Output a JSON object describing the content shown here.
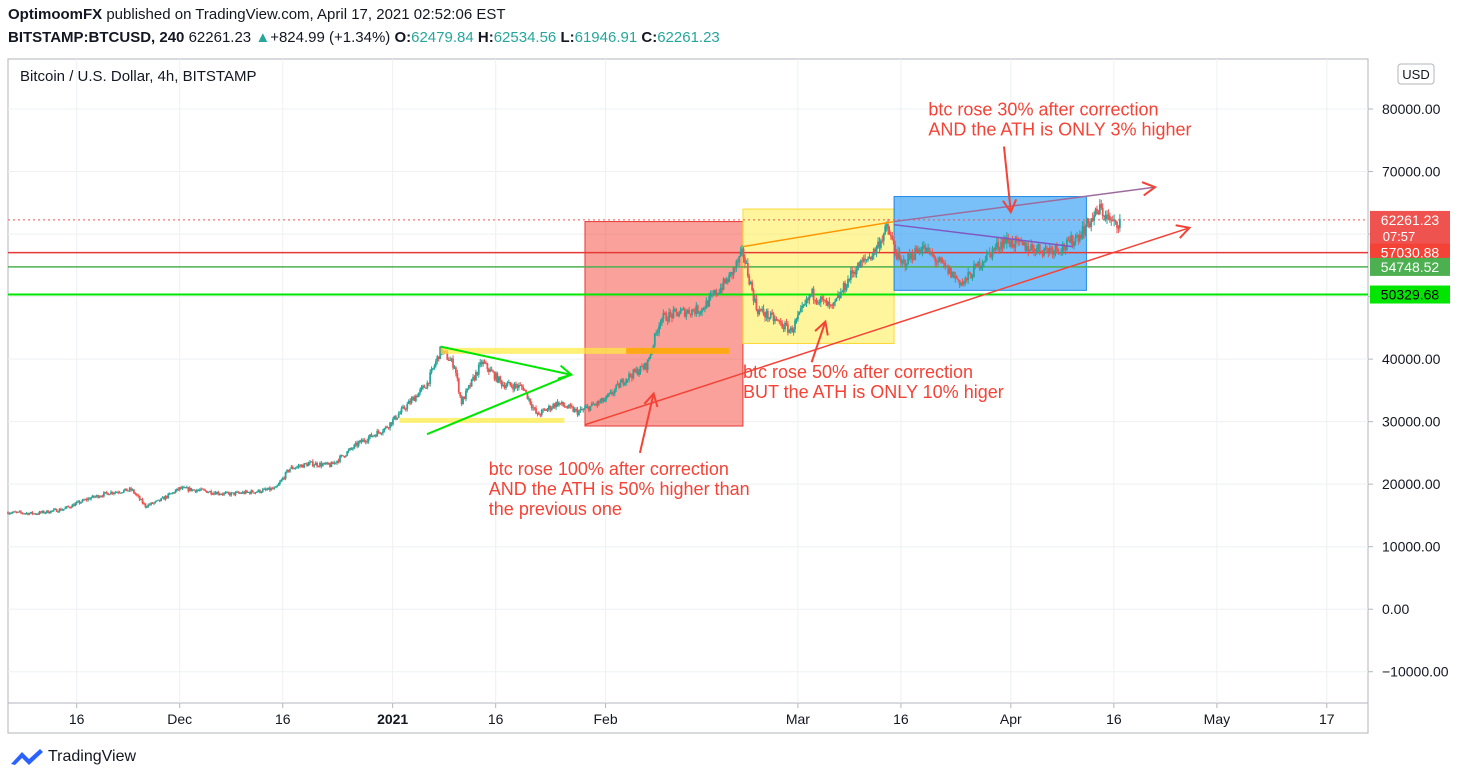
{
  "header": {
    "publisher": "OptimoomFX",
    "published_text": "published on TradingView.com, April 17, 2021 02:52:06 EST",
    "symbol": "BITSTAMP:BTCUSD, 240",
    "last": "62261.23",
    "change": "+824.99 (+1.34%)",
    "open_label": "O:",
    "open": "62479.84",
    "high_label": "H:",
    "high": "62534.56",
    "low_label": "L:",
    "low": "61946.91",
    "close_label": "C:",
    "close": "62261.23"
  },
  "brand": {
    "name": "TradingView"
  },
  "chart_data": {
    "type": "candlestick",
    "title": "Bitcoin / U.S. Dollar, 4h, BITSTAMP",
    "currency": "USD",
    "ylim": [
      -15000,
      88000
    ],
    "y_ticks": [
      -10000,
      0,
      10000,
      20000,
      30000,
      40000,
      50000,
      60000,
      70000,
      80000
    ],
    "y_tick_labels": [
      "−10000.00",
      "0.00",
      "10000.00",
      "20000.00",
      "30000.00",
      "40000.00",
      "50000.00",
      "60000.00",
      "70000.00",
      "80000.00"
    ],
    "x_range": [
      "2020-11-06",
      "2021-05-23"
    ],
    "x_ticks": [
      {
        "date": "2020-11-16",
        "label": "16",
        "bold": false
      },
      {
        "date": "2020-12-01",
        "label": "Dec",
        "bold": false
      },
      {
        "date": "2020-12-16",
        "label": "16",
        "bold": false
      },
      {
        "date": "2021-01-01",
        "label": "2021",
        "bold": true
      },
      {
        "date": "2021-01-16",
        "label": "16",
        "bold": false
      },
      {
        "date": "2021-02-01",
        "label": "Feb",
        "bold": false
      },
      {
        "date": "2021-03-01",
        "label": "Mar",
        "bold": false
      },
      {
        "date": "2021-03-16",
        "label": "16",
        "bold": false
      },
      {
        "date": "2021-04-01",
        "label": "Apr",
        "bold": false
      },
      {
        "date": "2021-04-16",
        "label": "16",
        "bold": false
      },
      {
        "date": "2021-05-01",
        "label": "May",
        "bold": false
      },
      {
        "date": "2021-05-17",
        "label": "17",
        "bold": false
      }
    ],
    "price_path": [
      [
        "2020-11-06",
        15500
      ],
      [
        "2020-11-10",
        15300
      ],
      [
        "2020-11-14",
        16000
      ],
      [
        "2020-11-18",
        17800
      ],
      [
        "2020-11-21",
        18700
      ],
      [
        "2020-11-24",
        19100
      ],
      [
        "2020-11-26",
        16500
      ],
      [
        "2020-11-28",
        17300
      ],
      [
        "2020-12-01",
        19300
      ],
      [
        "2020-12-04",
        19000
      ],
      [
        "2020-12-08",
        18400
      ],
      [
        "2020-12-12",
        18800
      ],
      [
        "2020-12-15",
        19300
      ],
      [
        "2020-12-17",
        22500
      ],
      [
        "2020-12-20",
        23300
      ],
      [
        "2020-12-23",
        23000
      ],
      [
        "2020-12-27",
        26500
      ],
      [
        "2020-12-31",
        29000
      ],
      [
        "2021-01-03",
        32500
      ],
      [
        "2021-01-06",
        36000
      ],
      [
        "2021-01-08",
        41500
      ],
      [
        "2021-01-10",
        39000
      ],
      [
        "2021-01-11",
        33000
      ],
      [
        "2021-01-14",
        39500
      ],
      [
        "2021-01-17",
        36000
      ],
      [
        "2021-01-20",
        35500
      ],
      [
        "2021-01-22",
        31000
      ],
      [
        "2021-01-25",
        33000
      ],
      [
        "2021-01-28",
        31500
      ],
      [
        "2021-02-01",
        33500
      ],
      [
        "2021-02-04",
        37000
      ],
      [
        "2021-02-07",
        39000
      ],
      [
        "2021-02-09",
        46500
      ],
      [
        "2021-02-12",
        47500
      ],
      [
        "2021-02-15",
        48000
      ],
      [
        "2021-02-19",
        53000
      ],
      [
        "2021-02-21",
        57000
      ],
      [
        "2021-02-23",
        48000
      ],
      [
        "2021-02-26",
        46000
      ],
      [
        "2021-02-28",
        44500
      ],
      [
        "2021-03-03",
        50500
      ],
      [
        "2021-03-06",
        48000
      ],
      [
        "2021-03-09",
        54000
      ],
      [
        "2021-03-12",
        57000
      ],
      [
        "2021-03-14",
        61000
      ],
      [
        "2021-03-16",
        55000
      ],
      [
        "2021-03-19",
        58000
      ],
      [
        "2021-03-22",
        55000
      ],
      [
        "2021-03-25",
        52000
      ],
      [
        "2021-03-28",
        56000
      ],
      [
        "2021-03-31",
        59000
      ],
      [
        "2021-04-03",
        58000
      ],
      [
        "2021-04-06",
        57500
      ],
      [
        "2021-04-09",
        58000
      ],
      [
        "2021-04-11",
        60000
      ],
      [
        "2021-04-14",
        64000
      ],
      [
        "2021-04-16",
        61500
      ],
      [
        "2021-04-17",
        62261
      ]
    ],
    "horizontal_levels": [
      {
        "value": 62261.23,
        "label": "62261.23",
        "sub": "07:57",
        "line_color": "#ef5350",
        "badge_color": "#ef5350",
        "style": "dotted"
      },
      {
        "value": 57030.88,
        "label": "57030.88",
        "line_color": "#e53935",
        "badge_color": "#f44336",
        "style": "solid"
      },
      {
        "value": 54748.52,
        "label": "54748.52",
        "line_color": "#4caf50",
        "badge_color": "#4caf50",
        "style": "solid"
      },
      {
        "value": 50329.68,
        "label": "50329.68",
        "line_color": "#00e600",
        "badge_color": "#00e600",
        "style": "solid"
      }
    ],
    "rectangles": [
      {
        "from": "2021-01-29",
        "to": "2021-02-21",
        "low": 29300,
        "high": 62000,
        "fill": "rgba(244,67,54,0.5)",
        "stroke": "#e53935"
      },
      {
        "from": "2021-02-21",
        "to": "2021-03-15",
        "low": 42500,
        "high": 64000,
        "fill": "rgba(255,235,59,0.5)",
        "stroke": "#fdd835"
      },
      {
        "from": "2021-03-15",
        "to": "2021-04-12",
        "low": 51000,
        "high": 66000,
        "fill": "rgba(33,150,243,0.6)",
        "stroke": "#1e88e5"
      }
    ],
    "annotations": [
      {
        "lines": [
          "btc rose 100% after correction",
          "AND the ATH is 50% higher than",
          "the previous one"
        ],
        "date": "2021-01-15",
        "value": 21500
      },
      {
        "lines": [
          "btc rose 50% after correction",
          "BUT the ATH is ONLY 10% higer"
        ],
        "date": "2021-02-21",
        "value": 37000
      },
      {
        "lines": [
          "btc rose 30% after correction",
          "AND the ATH is ONLY 3% higher"
        ],
        "date": "2021-03-20",
        "value": 79000
      }
    ]
  }
}
